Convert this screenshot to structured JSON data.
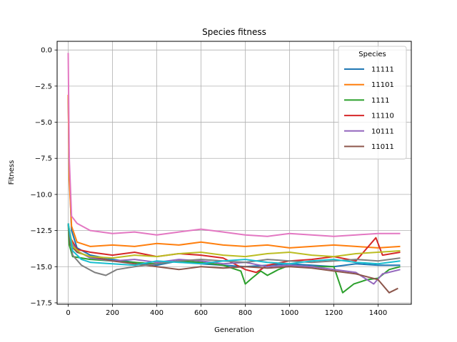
{
  "chart_data": {
    "type": "line",
    "title": "Species fitness",
    "xlabel": "Generation",
    "ylabel": "Fitness",
    "xlim": [
      -50,
      1550
    ],
    "ylim": [
      -17.6,
      0.6
    ],
    "xticks": [
      0,
      200,
      400,
      600,
      800,
      1000,
      1200,
      1400
    ],
    "yticks": [
      0.0,
      -2.5,
      -5.0,
      -7.5,
      -10.0,
      -12.5,
      -15.0,
      -17.5
    ],
    "xtick_labels": [
      "0",
      "200",
      "400",
      "600",
      "800",
      "1000",
      "1200",
      "1400"
    ],
    "ytick_labels": [
      "0.0",
      "−2.5",
      "−5.0",
      "−7.5",
      "−10.0",
      "−12.5",
      "−15.0",
      "−17.5"
    ],
    "grid": true,
    "legend": {
      "title": "Species",
      "position": "top-right"
    },
    "series": [
      {
        "name": "11111",
        "color": "#1f77b4",
        "in_legend": true,
        "points": [
          [
            0,
            -3.2
          ],
          [
            5,
            -8.5
          ],
          [
            15,
            -12.5
          ],
          [
            40,
            -13.7
          ],
          [
            100,
            -14.2
          ],
          [
            200,
            -14.5
          ],
          [
            300,
            -14.7
          ],
          [
            400,
            -14.9
          ],
          [
            500,
            -14.6
          ],
          [
            600,
            -14.8
          ],
          [
            700,
            -14.9
          ],
          [
            800,
            -15.0
          ],
          [
            900,
            -14.9
          ],
          [
            1000,
            -14.8
          ],
          [
            1100,
            -14.9
          ],
          [
            1200,
            -15.0
          ],
          [
            1300,
            -14.8
          ],
          [
            1400,
            -14.9
          ],
          [
            1500,
            -14.9
          ]
        ]
      },
      {
        "name": "11101",
        "color": "#ff7f0e",
        "in_legend": true,
        "points": [
          [
            0,
            -3.1
          ],
          [
            5,
            -9.0
          ],
          [
            15,
            -12.2
          ],
          [
            40,
            -13.3
          ],
          [
            100,
            -13.6
          ],
          [
            200,
            -13.5
          ],
          [
            300,
            -13.6
          ],
          [
            400,
            -13.4
          ],
          [
            500,
            -13.5
          ],
          [
            600,
            -13.3
          ],
          [
            700,
            -13.5
          ],
          [
            800,
            -13.6
          ],
          [
            900,
            -13.5
          ],
          [
            1000,
            -13.7
          ],
          [
            1100,
            -13.6
          ],
          [
            1200,
            -13.5
          ],
          [
            1300,
            -13.6
          ],
          [
            1400,
            -13.7
          ],
          [
            1500,
            -13.6
          ]
        ]
      },
      {
        "name": "1111",
        "color": "#2ca02c",
        "in_legend": true,
        "points": [
          [
            0,
            -12.0
          ],
          [
            5,
            -13.5
          ],
          [
            20,
            -14.3
          ],
          [
            100,
            -14.5
          ],
          [
            200,
            -14.6
          ],
          [
            300,
            -14.7
          ],
          [
            400,
            -14.8
          ],
          [
            500,
            -14.6
          ],
          [
            600,
            -14.7
          ],
          [
            700,
            -14.9
          ],
          [
            780,
            -15.3
          ],
          [
            800,
            -16.2
          ],
          [
            830,
            -15.8
          ],
          [
            870,
            -15.3
          ],
          [
            900,
            -15.6
          ],
          [
            950,
            -15.2
          ],
          [
            1000,
            -14.9
          ],
          [
            1100,
            -15.0
          ],
          [
            1200,
            -15.0
          ],
          [
            1240,
            -16.8
          ],
          [
            1290,
            -16.2
          ],
          [
            1350,
            -15.9
          ],
          [
            1400,
            -15.8
          ],
          [
            1450,
            -15.2
          ],
          [
            1500,
            -15.0
          ]
        ]
      },
      {
        "name": "11110",
        "color": "#d62728",
        "in_legend": true,
        "points": [
          [
            0,
            -12.0
          ],
          [
            10,
            -13.0
          ],
          [
            40,
            -13.8
          ],
          [
            100,
            -14.0
          ],
          [
            200,
            -14.2
          ],
          [
            300,
            -14.0
          ],
          [
            400,
            -14.3
          ],
          [
            500,
            -14.1
          ],
          [
            600,
            -14.2
          ],
          [
            700,
            -14.4
          ],
          [
            800,
            -15.2
          ],
          [
            850,
            -15.4
          ],
          [
            900,
            -14.9
          ],
          [
            1000,
            -14.6
          ],
          [
            1100,
            -14.5
          ],
          [
            1200,
            -14.3
          ],
          [
            1300,
            -14.6
          ],
          [
            1390,
            -13.0
          ],
          [
            1420,
            -14.2
          ],
          [
            1500,
            -14.0
          ]
        ]
      },
      {
        "name": "10111",
        "color": "#9467bd",
        "in_legend": true,
        "points": [
          [
            0,
            -12.0
          ],
          [
            10,
            -13.2
          ],
          [
            40,
            -13.9
          ],
          [
            100,
            -14.4
          ],
          [
            200,
            -14.6
          ],
          [
            300,
            -14.5
          ],
          [
            400,
            -14.7
          ],
          [
            500,
            -14.5
          ],
          [
            600,
            -14.6
          ],
          [
            700,
            -14.8
          ],
          [
            800,
            -14.7
          ],
          [
            900,
            -15.0
          ],
          [
            1000,
            -14.9
          ],
          [
            1100,
            -15.0
          ],
          [
            1200,
            -15.2
          ],
          [
            1300,
            -15.4
          ],
          [
            1380,
            -16.2
          ],
          [
            1420,
            -15.5
          ],
          [
            1500,
            -15.2
          ]
        ]
      },
      {
        "name": "11011",
        "color": "#8c564b",
        "in_legend": true,
        "points": [
          [
            0,
            -12.0
          ],
          [
            10,
            -13.5
          ],
          [
            40,
            -14.0
          ],
          [
            100,
            -14.3
          ],
          [
            200,
            -14.6
          ],
          [
            300,
            -14.8
          ],
          [
            400,
            -15.0
          ],
          [
            500,
            -15.2
          ],
          [
            600,
            -15.0
          ],
          [
            700,
            -15.1
          ],
          [
            800,
            -15.0
          ],
          [
            900,
            -15.1
          ],
          [
            1000,
            -15.0
          ],
          [
            1100,
            -15.1
          ],
          [
            1200,
            -15.3
          ],
          [
            1300,
            -15.5
          ],
          [
            1400,
            -15.9
          ],
          [
            1450,
            -16.8
          ],
          [
            1490,
            -16.5
          ]
        ]
      },
      {
        "name": "",
        "color": "#e377c2",
        "in_legend": false,
        "points": [
          [
            0,
            -0.2
          ],
          [
            5,
            -7.5
          ],
          [
            15,
            -11.5
          ],
          [
            40,
            -12.0
          ],
          [
            100,
            -12.5
          ],
          [
            200,
            -12.7
          ],
          [
            300,
            -12.6
          ],
          [
            400,
            -12.8
          ],
          [
            500,
            -12.6
          ],
          [
            600,
            -12.4
          ],
          [
            700,
            -12.6
          ],
          [
            800,
            -12.8
          ],
          [
            900,
            -12.9
          ],
          [
            1000,
            -12.7
          ],
          [
            1100,
            -12.8
          ],
          [
            1200,
            -12.9
          ],
          [
            1300,
            -12.8
          ],
          [
            1400,
            -12.7
          ],
          [
            1500,
            -12.7
          ]
        ]
      },
      {
        "name": "",
        "color": "#7f7f7f",
        "in_legend": false,
        "points": [
          [
            0,
            -12.0
          ],
          [
            20,
            -14.2
          ],
          [
            60,
            -14.9
          ],
          [
            120,
            -15.4
          ],
          [
            170,
            -15.6
          ],
          [
            220,
            -15.2
          ],
          [
            300,
            -15.0
          ],
          [
            400,
            -14.8
          ],
          [
            500,
            -14.6
          ],
          [
            600,
            -14.5
          ],
          [
            700,
            -14.6
          ],
          [
            800,
            -14.7
          ],
          [
            900,
            -14.5
          ],
          [
            1000,
            -14.6
          ],
          [
            1100,
            -14.7
          ],
          [
            1200,
            -14.6
          ],
          [
            1300,
            -14.5
          ],
          [
            1400,
            -14.6
          ],
          [
            1500,
            -14.4
          ]
        ]
      },
      {
        "name": "",
        "color": "#bcbd22",
        "in_legend": false,
        "points": [
          [
            0,
            -12.0
          ],
          [
            20,
            -13.6
          ],
          [
            60,
            -14.1
          ],
          [
            100,
            -14.3
          ],
          [
            200,
            -14.4
          ],
          [
            300,
            -14.2
          ],
          [
            400,
            -14.3
          ],
          [
            500,
            -14.1
          ],
          [
            600,
            -14.0
          ],
          [
            700,
            -14.2
          ],
          [
            800,
            -14.3
          ],
          [
            900,
            -14.1
          ],
          [
            1000,
            -14.0
          ],
          [
            1100,
            -14.2
          ],
          [
            1200,
            -14.3
          ],
          [
            1300,
            -14.1
          ],
          [
            1400,
            -14.0
          ],
          [
            1500,
            -13.9
          ]
        ]
      },
      {
        "name": "",
        "color": "#17becf",
        "in_legend": false,
        "points": [
          [
            0,
            -12.0
          ],
          [
            20,
            -13.9
          ],
          [
            60,
            -14.5
          ],
          [
            100,
            -14.7
          ],
          [
            200,
            -14.8
          ],
          [
            300,
            -14.9
          ],
          [
            400,
            -14.6
          ],
          [
            500,
            -14.7
          ],
          [
            600,
            -14.8
          ],
          [
            700,
            -14.6
          ],
          [
            800,
            -14.5
          ],
          [
            900,
            -14.7
          ],
          [
            1000,
            -14.8
          ],
          [
            1100,
            -14.6
          ],
          [
            1200,
            -14.5
          ],
          [
            1300,
            -14.7
          ],
          [
            1400,
            -14.8
          ],
          [
            1500,
            -14.6
          ]
        ]
      }
    ]
  }
}
